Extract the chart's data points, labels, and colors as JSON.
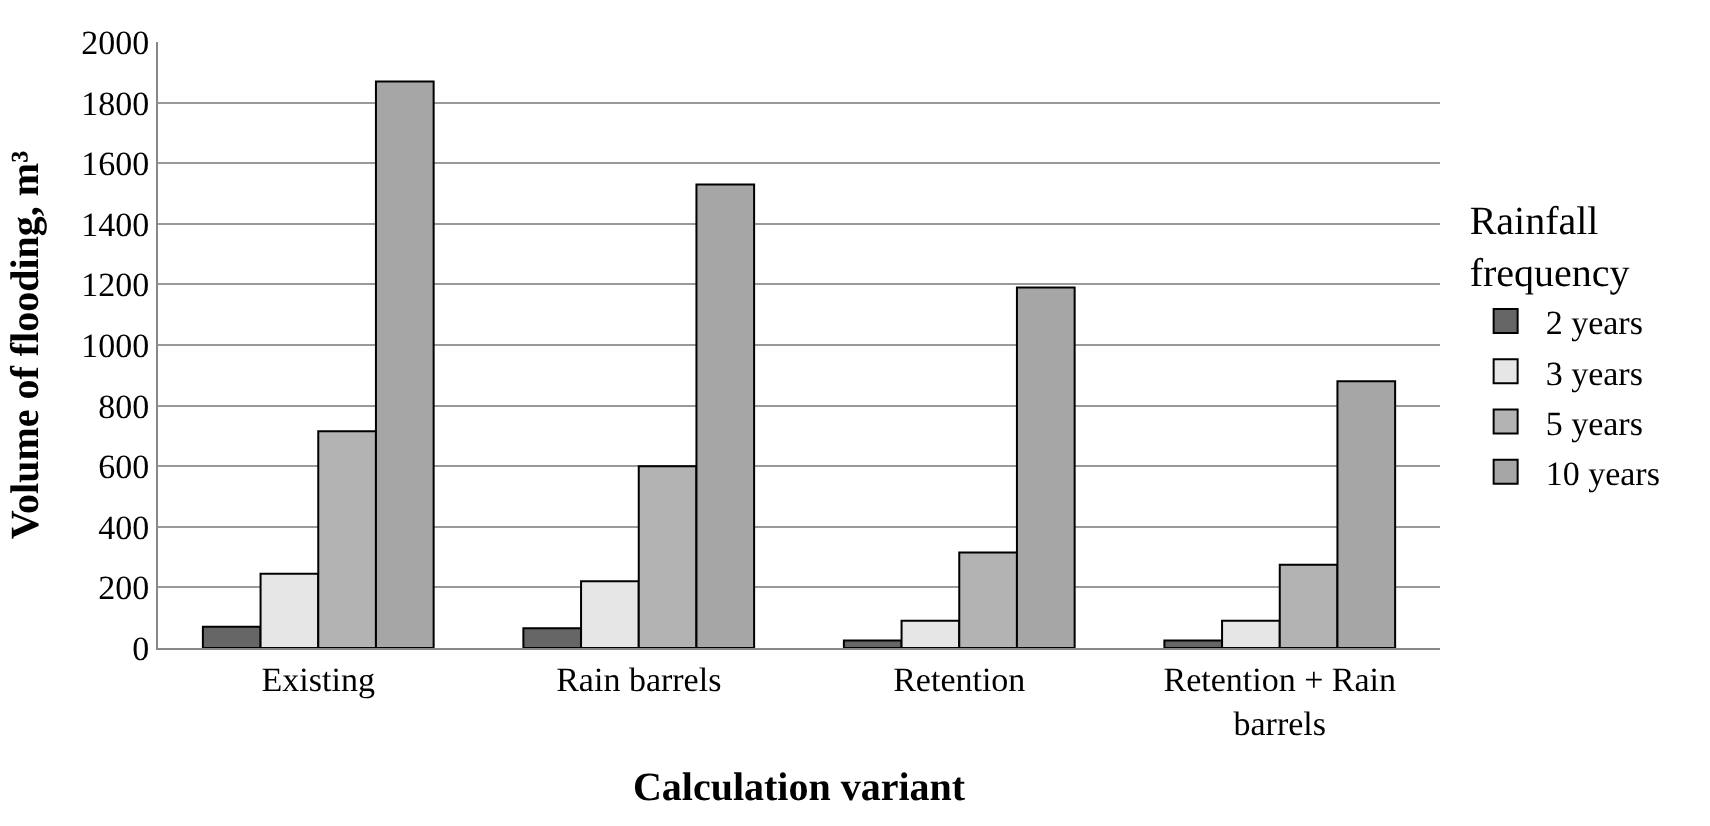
{
  "chart_data": {
    "type": "bar",
    "xlabel": "Calculation variant",
    "ylabel": "Volume of flooding, m³",
    "legend_title": "Rainfall frequency",
    "categories": [
      "Existing",
      "Rain barrels",
      "Retention",
      "Retention + Rain barrels"
    ],
    "series": [
      {
        "name": "2 years",
        "color": "#666666",
        "values": [
          70,
          65,
          25,
          25
        ]
      },
      {
        "name": "3 years",
        "color": "#e6e6e6",
        "values": [
          245,
          220,
          90,
          90
        ]
      },
      {
        "name": "5 years",
        "color": "#b3b3b3",
        "values": [
          715,
          600,
          315,
          275
        ]
      },
      {
        "name": "10 years",
        "color": "#a6a6a6",
        "values": [
          1870,
          1530,
          1190,
          880
        ]
      }
    ],
    "ylim": [
      0,
      2000
    ],
    "yticks": [
      0,
      200,
      400,
      600,
      800,
      1000,
      1200,
      1400,
      1600,
      1800,
      2000
    ],
    "grid": "y",
    "legend": "right"
  }
}
